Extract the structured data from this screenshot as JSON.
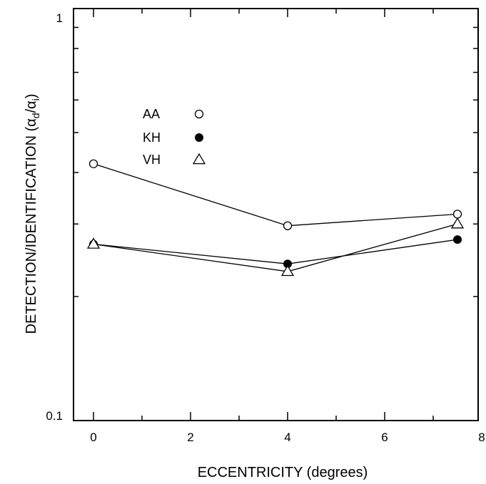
{
  "chart_data": {
    "type": "line",
    "title": "",
    "xlabel": "ECCENTRICITY (degrees)",
    "ylabel_main": "DETECTION/IDENTIFICATION (",
    "ylabel_alpha1": "α",
    "ylabel_sub1": "d",
    "ylabel_slash": "/",
    "ylabel_alpha2": "α",
    "ylabel_sub2": "i",
    "ylabel_close": ")",
    "xlim": [
      -0.5,
      8
    ],
    "ylim": [
      0.1,
      1
    ],
    "yscale": "log",
    "grid": false,
    "legend_position": "upper-left",
    "x_ticks": [
      0,
      2,
      4,
      6,
      8
    ],
    "x_tick_labels": [
      "0",
      "2",
      "4",
      "6",
      "8"
    ],
    "y_tick_labels": [
      "0.1",
      "1"
    ],
    "series": [
      {
        "name": "AA",
        "marker": "open-circle",
        "x": [
          0,
          4,
          7.5
        ],
        "y": [
          0.42,
          0.297,
          0.317
        ]
      },
      {
        "name": "KH",
        "marker": "filled-circle",
        "x": [
          0,
          4,
          7.5
        ],
        "y": [
          0.268,
          0.24,
          0.275
        ]
      },
      {
        "name": "VH",
        "marker": "open-triangle",
        "x": [
          0,
          4,
          7.5
        ],
        "y": [
          0.268,
          0.23,
          0.3
        ]
      }
    ]
  }
}
